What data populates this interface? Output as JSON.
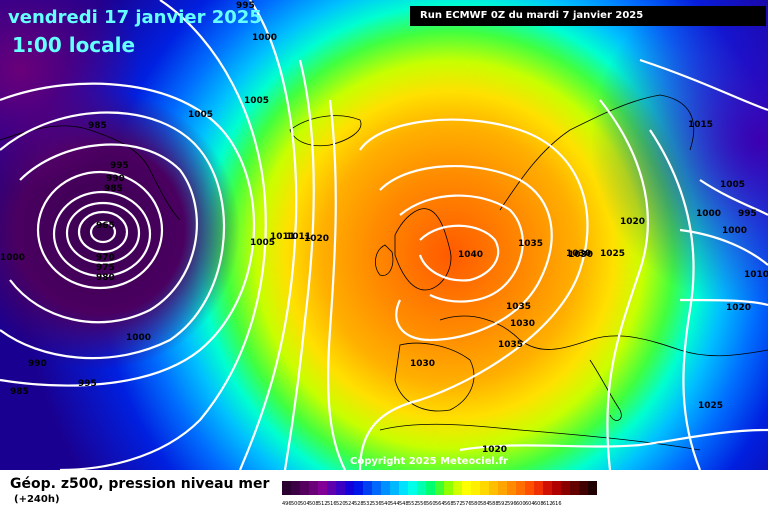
{
  "header": {
    "date": "vendredi 17 janvier 2025",
    "time": "1:00 locale",
    "run": "Run ECMWF 0Z du mardi 7 janvier 2025"
  },
  "footer": {
    "title": "Géop. z500, pression niveau mer",
    "lead": "(+240h)",
    "copyright": "Copyright 2025 Meteociel.fr"
  },
  "legend": {
    "colors": [
      "#2b0030",
      "#3c0045",
      "#55005e",
      "#6b0078",
      "#820096",
      "#5e00ad",
      "#3c00c3",
      "#1400d8",
      "#0016e8",
      "#0040f2",
      "#0068fa",
      "#0090ff",
      "#00b8ff",
      "#00e0ff",
      "#00ffe8",
      "#00ffb0",
      "#00ff70",
      "#40ff30",
      "#90ff00",
      "#d0ff00",
      "#ffff00",
      "#fff000",
      "#ffd800",
      "#ffbf00",
      "#ffa500",
      "#ff8a00",
      "#ff6e00",
      "#ff5000",
      "#f03000",
      "#d01000",
      "#b00000",
      "#8a0000",
      "#650000",
      "#400000",
      "#200000"
    ],
    "labels": [
      "496",
      "500",
      "504",
      "508",
      "512",
      "516",
      "520",
      "524",
      "528",
      "532",
      "536",
      "540",
      "544",
      "548",
      "552",
      "556",
      "560",
      "564",
      "568",
      "572",
      "576",
      "580",
      "584",
      "588",
      "592",
      "596",
      "600",
      "604",
      "608",
      "612",
      "616"
    ]
  },
  "isobar_labels": [
    "995",
    "1000",
    "1005",
    "1005",
    "985",
    "995",
    "990",
    "985",
    "965",
    "970",
    "975",
    "980",
    "1000",
    "1000",
    "990",
    "985",
    "995",
    "1005",
    "1011",
    "1011",
    "1020",
    "1040",
    "1035",
    "1035",
    "1030",
    "1030",
    "1035",
    "1030",
    "1020",
    "1015",
    "1000",
    "995",
    "1000",
    "1005",
    "1020",
    "1025",
    "1030",
    "1020",
    "1025",
    "1010"
  ]
}
